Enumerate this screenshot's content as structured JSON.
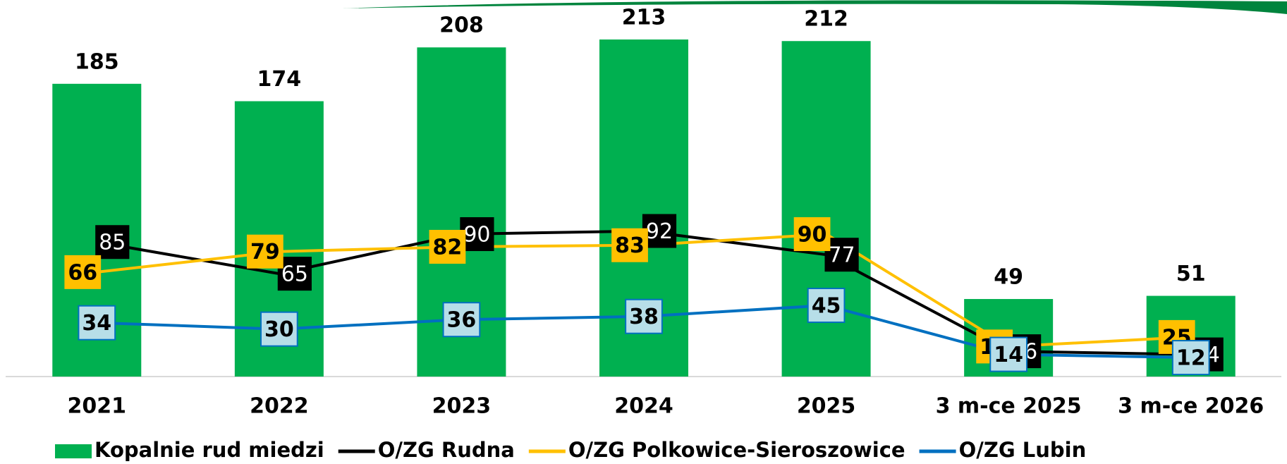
{
  "chart_data": {
    "type": "bar",
    "categories": [
      "2021",
      "2022",
      "2023",
      "2024",
      "2025",
      "3 m-ce 2025",
      "3 m-ce 2026"
    ],
    "series": [
      {
        "name": "Kopalnie rud miedzi",
        "type": "bar",
        "color": "#00b050",
        "values": [
          185,
          174,
          208,
          213,
          212,
          49,
          51
        ]
      },
      {
        "name": "O/ZG Rudna",
        "type": "line",
        "color": "#000000",
        "values": [
          85,
          65,
          90,
          92,
          77,
          16,
          14
        ]
      },
      {
        "name": "O/ZG Polkowice-Sieroszowice",
        "type": "line",
        "color": "#ffc000",
        "values": [
          66,
          79,
          82,
          83,
          90,
          19,
          25
        ]
      },
      {
        "name": "O/ZG Lubin",
        "type": "line",
        "color": "#0070c0",
        "values": [
          34,
          30,
          36,
          38,
          45,
          14,
          12
        ]
      }
    ]
  }
}
